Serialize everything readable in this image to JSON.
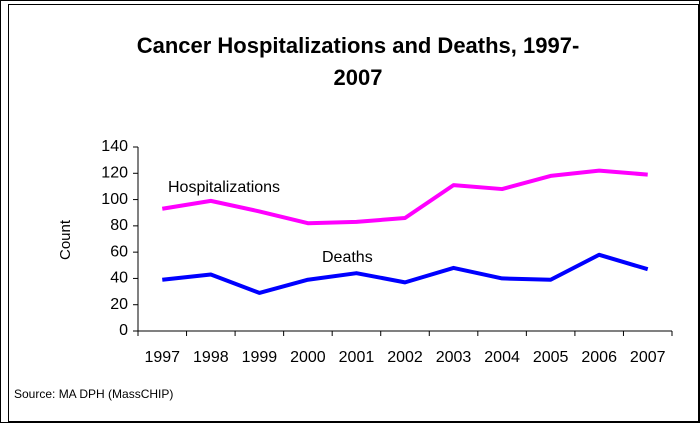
{
  "chart_data": {
    "type": "line",
    "title": "Cancer Hospitalizations and Deaths, 1997-2007",
    "y_label": "Count",
    "source": "Source: MA DPH (MassCHIP)",
    "categories": [
      "1997",
      "1998",
      "1999",
      "2000",
      "2001",
      "2002",
      "2003",
      "2004",
      "2005",
      "2006",
      "2007"
    ],
    "series": [
      {
        "name": "Hospitalizations",
        "color": "#ff00ff",
        "values": [
          93,
          99,
          91,
          82,
          83,
          86,
          111,
          108,
          118,
          122,
          119
        ]
      },
      {
        "name": "Deaths",
        "color": "#0000ff",
        "values": [
          39,
          43,
          29,
          39,
          44,
          37,
          48,
          40,
          39,
          58,
          47
        ]
      }
    ],
    "ylim": [
      0,
      140
    ],
    "yticks": [
      0,
      20,
      40,
      60,
      80,
      100,
      120,
      140
    ]
  }
}
